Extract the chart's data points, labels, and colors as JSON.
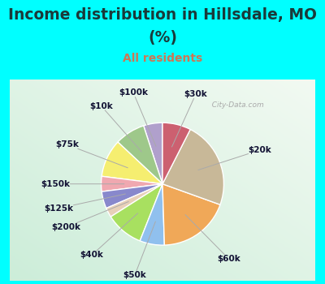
{
  "title_line1": "Income distribution in Hillsdale, MO",
  "title_line2": "(%)",
  "subtitle": "All residents",
  "title_color": "#1a3a3a",
  "subtitle_color": "#cc7755",
  "bg_cyan": "#00ffff",
  "bg_chart_left": "#e8f5f0",
  "bg_chart_right": "#d8eee8",
  "labels": [
    "$100k",
    "$10k",
    "$75k",
    "$150k",
    "$125k",
    "$200k",
    "$40k",
    "$50k",
    "$60k",
    "$20k",
    "$30k"
  ],
  "values": [
    5.0,
    8.0,
    10.0,
    4.0,
    4.5,
    2.5,
    10.0,
    6.5,
    19.0,
    23.0,
    7.5
  ],
  "colors": [
    "#b0a0cc",
    "#9ec88a",
    "#f5ee70",
    "#f0a8b0",
    "#8888cc",
    "#e8d0b8",
    "#a8e060",
    "#90c0ee",
    "#f0a858",
    "#c8b898",
    "#cc6070"
  ],
  "startangle": 90,
  "label_fontsize": 7.5,
  "title_fontsize": 13.5,
  "subtitle_fontsize": 10
}
